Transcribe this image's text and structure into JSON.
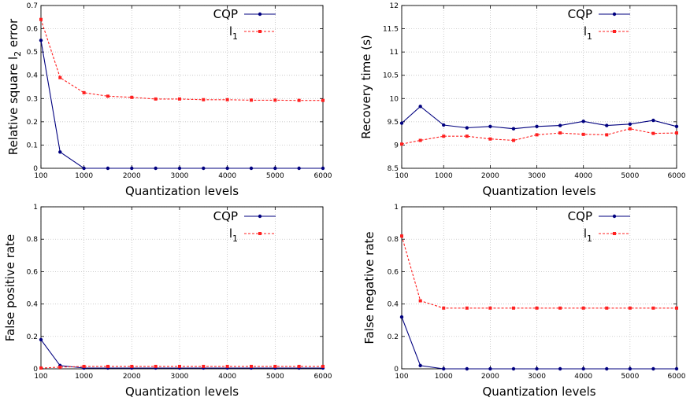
{
  "chart_data": [
    {
      "type": "line",
      "xlabel": "Quantization levels",
      "ylabel": "Relative square l",
      "ylabel_sub": "2",
      "ylabel_tail": " error",
      "x": [
        100,
        500,
        1000,
        1500,
        2000,
        2500,
        3000,
        3500,
        4000,
        4500,
        5000,
        5500,
        6000
      ],
      "xticks": [
        "100",
        "1000",
        "2000",
        "3000",
        "4000",
        "5000",
        "6000"
      ],
      "xtick_values": [
        100,
        1000,
        2000,
        3000,
        4000,
        5000,
        6000
      ],
      "yticks": [
        "0",
        "0.1",
        "0.2",
        "0.3",
        "0.4",
        "0.5",
        "0.6",
        "0.7"
      ],
      "ylim": [
        0,
        0.7
      ],
      "grid": true,
      "legend_placement": "top-right",
      "series": [
        {
          "name": "CQP",
          "color": "#00007f",
          "style": "solid",
          "marker": "circle",
          "values": [
            0.55,
            0.07,
            0.0,
            0.0,
            0.0,
            0.0,
            0.0,
            0.0,
            0.0,
            0.0,
            0.0,
            0.0,
            0.0
          ]
        },
        {
          "name": "l",
          "name_sub": "1",
          "color": "#ff2020",
          "style": "dashed",
          "marker": "square",
          "values": [
            0.64,
            0.39,
            0.325,
            0.31,
            0.305,
            0.298,
            0.298,
            0.295,
            0.295,
            0.293,
            0.293,
            0.292,
            0.292
          ]
        }
      ]
    },
    {
      "type": "line",
      "xlabel": "Quantization levels",
      "ylabel": "Recovery time (s)",
      "x": [
        100,
        500,
        1000,
        1500,
        2000,
        2500,
        3000,
        3500,
        4000,
        4500,
        5000,
        5500,
        6000
      ],
      "xticks": [
        "100",
        "1000",
        "2000",
        "3000",
        "4000",
        "5000",
        "6000"
      ],
      "xtick_values": [
        100,
        1000,
        2000,
        3000,
        4000,
        5000,
        6000
      ],
      "yticks": [
        "8.5",
        "9",
        "9.5",
        "10",
        "10.5",
        "11",
        "11.5",
        "12"
      ],
      "ylim": [
        8.5,
        12
      ],
      "grid": true,
      "legend_placement": "top-right",
      "series": [
        {
          "name": "CQP",
          "color": "#00007f",
          "style": "solid",
          "marker": "circle",
          "values": [
            9.47,
            9.83,
            9.43,
            9.37,
            9.4,
            9.35,
            9.4,
            9.42,
            9.51,
            9.42,
            9.45,
            9.53,
            9.4
          ]
        },
        {
          "name": "l",
          "name_sub": "1",
          "color": "#ff2020",
          "style": "dashed",
          "marker": "square",
          "values": [
            9.02,
            9.1,
            9.19,
            9.19,
            9.13,
            9.1,
            9.22,
            9.26,
            9.23,
            9.22,
            9.35,
            9.25,
            9.26
          ]
        }
      ]
    },
    {
      "type": "line",
      "xlabel": "Quantization levels",
      "ylabel": "False positive rate",
      "x": [
        100,
        500,
        1000,
        1500,
        2000,
        2500,
        3000,
        3500,
        4000,
        4500,
        5000,
        5500,
        6000
      ],
      "xticks": [
        "100",
        "1000",
        "2000",
        "3000",
        "4000",
        "5000",
        "6000"
      ],
      "xtick_values": [
        100,
        1000,
        2000,
        3000,
        4000,
        5000,
        6000
      ],
      "yticks": [
        "0",
        "0.2",
        "0.4",
        "0.6",
        "0.8",
        "1"
      ],
      "ylim": [
        0,
        1
      ],
      "grid": true,
      "legend_placement": "top-right",
      "series": [
        {
          "name": "CQP",
          "color": "#00007f",
          "style": "solid",
          "marker": "circle",
          "values": [
            0.18,
            0.02,
            0.005,
            0.005,
            0.005,
            0.005,
            0.005,
            0.005,
            0.005,
            0.005,
            0.005,
            0.005,
            0.005
          ]
        },
        {
          "name": "l",
          "name_sub": "1",
          "color": "#ff2020",
          "style": "dashed",
          "marker": "square",
          "values": [
            0.005,
            0.01,
            0.015,
            0.015,
            0.015,
            0.015,
            0.015,
            0.015,
            0.015,
            0.015,
            0.015,
            0.015,
            0.015
          ]
        }
      ]
    },
    {
      "type": "line",
      "xlabel": "Quantization levels",
      "ylabel": "False negative rate",
      "x": [
        100,
        500,
        1000,
        1500,
        2000,
        2500,
        3000,
        3500,
        4000,
        4500,
        5000,
        5500,
        6000
      ],
      "xticks": [
        "100",
        "1000",
        "2000",
        "3000",
        "4000",
        "5000",
        "6000"
      ],
      "xtick_values": [
        100,
        1000,
        2000,
        3000,
        4000,
        5000,
        6000
      ],
      "yticks": [
        "0",
        "0.2",
        "0.4",
        "0.6",
        "0.8",
        "1"
      ],
      "ylim": [
        0,
        1
      ],
      "grid": true,
      "legend_placement": "top-right",
      "series": [
        {
          "name": "CQP",
          "color": "#00007f",
          "style": "solid",
          "marker": "circle",
          "values": [
            0.32,
            0.02,
            0.0,
            0.0,
            0.0,
            0.0,
            0.0,
            0.0,
            0.0,
            0.0,
            0.0,
            0.0,
            0.0
          ]
        },
        {
          "name": "l",
          "name_sub": "1",
          "color": "#ff2020",
          "style": "dashed",
          "marker": "square",
          "values": [
            0.82,
            0.42,
            0.375,
            0.375,
            0.375,
            0.375,
            0.375,
            0.375,
            0.375,
            0.375,
            0.375,
            0.375,
            0.375
          ]
        }
      ]
    }
  ]
}
